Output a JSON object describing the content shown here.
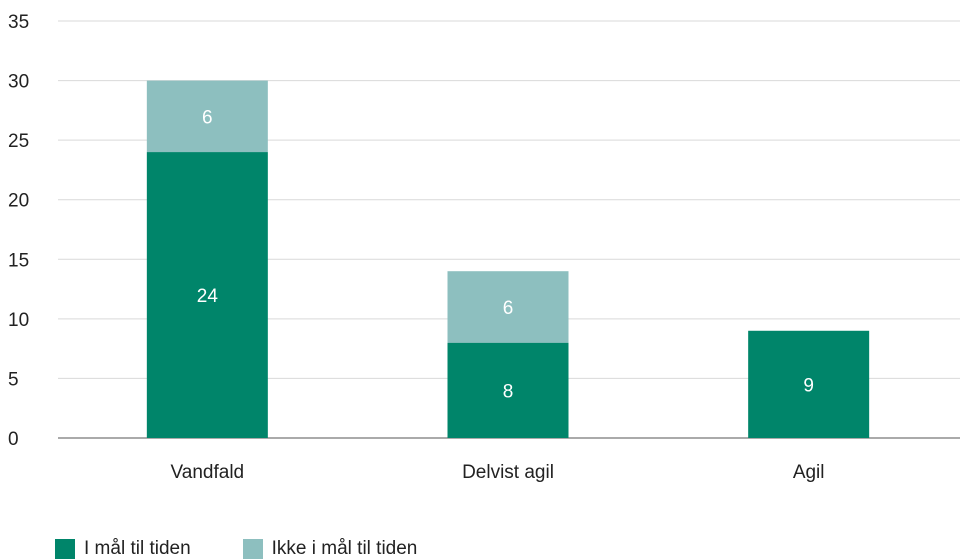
{
  "chart_data": {
    "type": "bar",
    "stacked": true,
    "categories": [
      "Vandfald",
      "Delvist agil",
      "Agil"
    ],
    "series": [
      {
        "name": "I mål til tiden",
        "values": [
          24,
          8,
          9
        ],
        "color": "#00856a"
      },
      {
        "name": "Ikke i mål til tiden",
        "values": [
          6,
          6,
          0
        ],
        "color": "#8dbfbf"
      }
    ],
    "data_labels": [
      [
        "24",
        "8",
        "9"
      ],
      [
        "6",
        "6",
        ""
      ]
    ],
    "ylim": [
      0,
      35
    ],
    "yticks": [
      0,
      5,
      10,
      15,
      20,
      25,
      30,
      35
    ],
    "grid": true,
    "legend_position": "bottom-left",
    "title": "",
    "xlabel": "",
    "ylabel": ""
  }
}
